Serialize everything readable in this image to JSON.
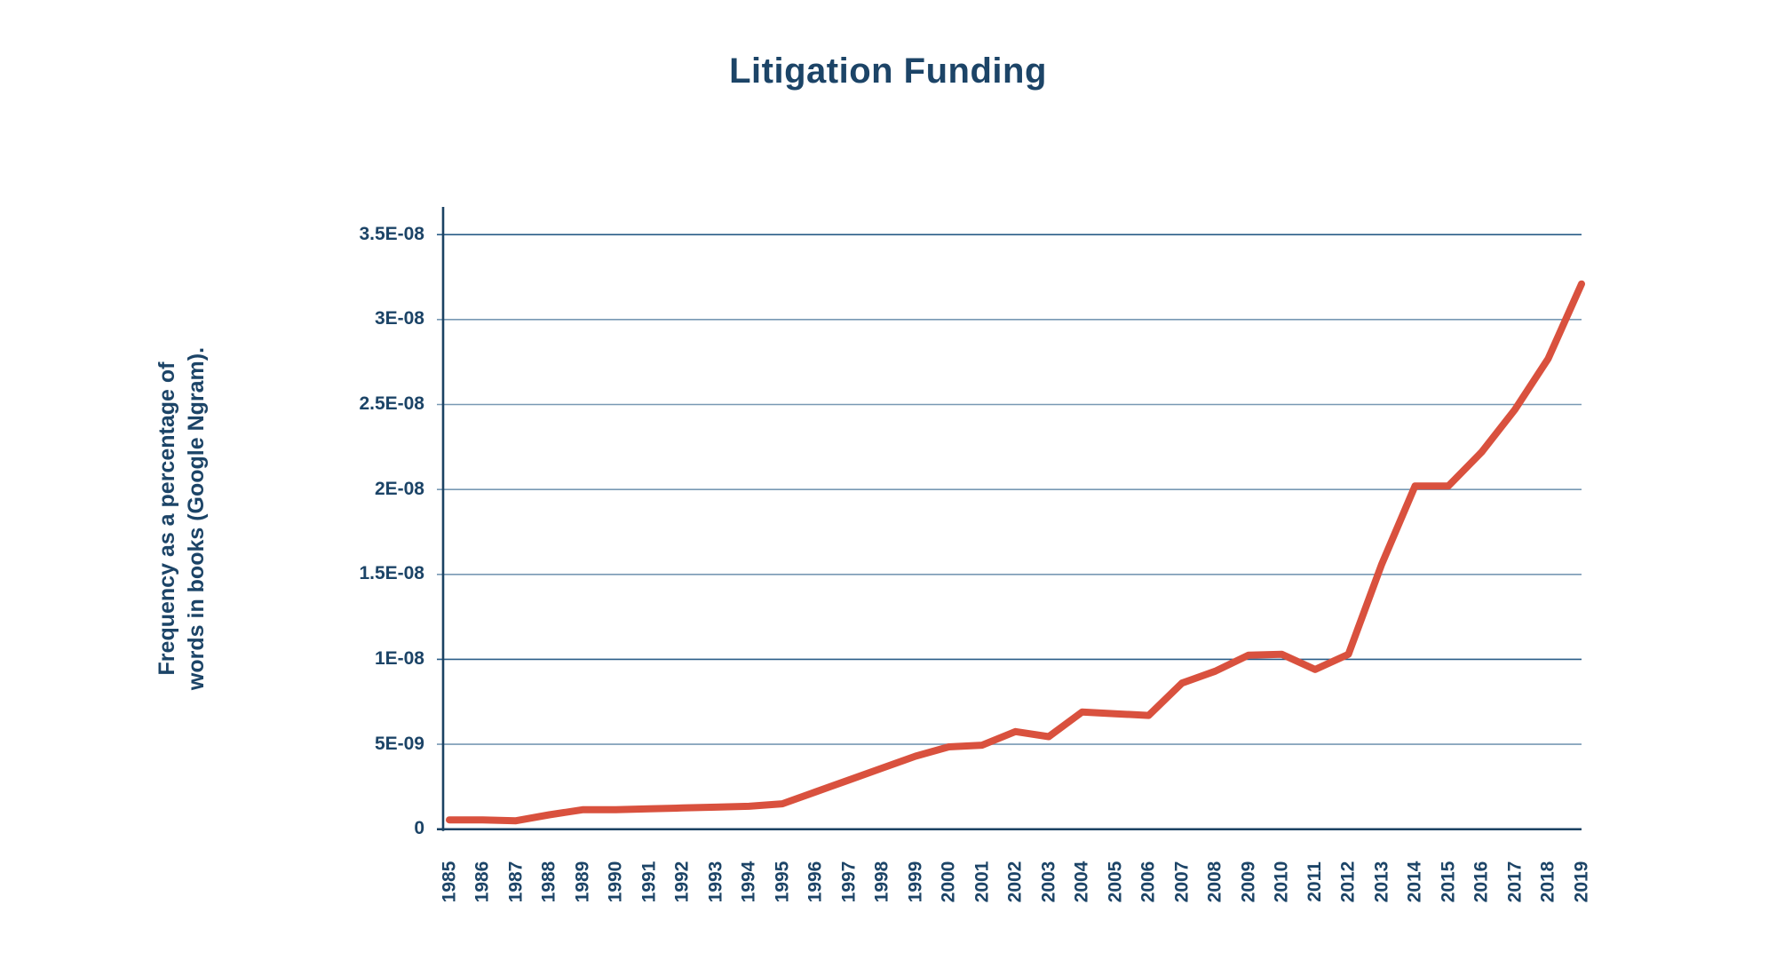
{
  "chart": {
    "title": "Litigation Funding"
  },
  "chart_data": {
    "type": "line",
    "title": "Litigation Funding",
    "xlabel": "",
    "ylabel": "Frequency as a percentage of words in books (Google Ngram).",
    "ylabel_lines": [
      "Frequency as a percentage of",
      "words in books (Google Ngram)."
    ],
    "x": [
      1985,
      1986,
      1987,
      1988,
      1989,
      1990,
      1991,
      1992,
      1993,
      1994,
      1995,
      1996,
      1997,
      1998,
      1999,
      2000,
      2001,
      2002,
      2003,
      2004,
      2005,
      2006,
      2007,
      2008,
      2009,
      2010,
      2011,
      2012,
      2013,
      2014,
      2015,
      2016,
      2017,
      2018,
      2019
    ],
    "series": [
      {
        "name": "Litigation Funding",
        "color": "#d9513e",
        "values": [
          5.5e-10,
          5.5e-10,
          5e-10,
          8.5e-10,
          1.15e-09,
          1.15e-09,
          1.2e-09,
          1.25e-09,
          1.3e-09,
          1.35e-09,
          1.5e-09,
          2.2e-09,
          2.9e-09,
          3.6e-09,
          4.3e-09,
          4.85e-09,
          4.95e-09,
          5.75e-09,
          5.45e-09,
          6.9e-09,
          6.8e-09,
          6.7e-09,
          8.6e-09,
          9.3e-09,
          1.025e-08,
          1.03e-08,
          9.4e-09,
          1.03e-08,
          1.56e-08,
          2.02e-08,
          2.02e-08,
          2.22e-08,
          2.47e-08,
          2.77e-08,
          3.21e-08
        ]
      }
    ],
    "ylim": [
      0,
      3.5e-08
    ],
    "ytick_step": 5e-09,
    "ytick_labels": [
      "3.5E-08",
      "3E-08",
      "2.5E-08",
      "2E-08",
      "1.5E-08",
      "1E-08",
      "5E-09",
      "0"
    ],
    "grid": "horizontal",
    "legend": "none",
    "colors": {
      "line": "#d9513e",
      "text": "#1c4467",
      "axis": "#1b4263",
      "grid": "#7899b4",
      "grid_major": "#2a5d88"
    }
  }
}
